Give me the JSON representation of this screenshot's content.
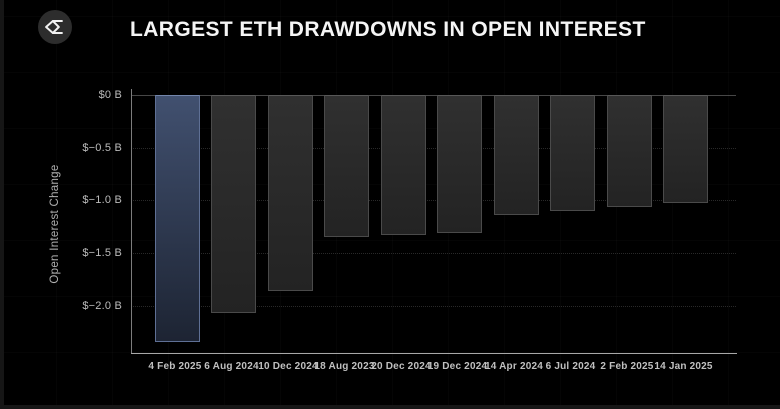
{
  "header": {
    "title": "LARGEST ETH DRAWDOWNS IN OPEN INTEREST",
    "logo_icon": "sigma-diamond-logo-icon"
  },
  "colors": {
    "background": "#000000",
    "highlight_bar_top": "#41506f",
    "highlight_bar_bottom": "#1d2433",
    "highlight_bar_border": "#5f7095",
    "bar_top": "#303030",
    "bar_bottom": "#232323",
    "bar_border": "#4a4a4a",
    "axis_line": "#a8a8a8",
    "tick_text": "#bcbcbc",
    "title_text": "#f5f5f5"
  },
  "chart_data": {
    "type": "bar",
    "title": "LARGEST ETH DRAWDOWNS IN OPEN INTEREST",
    "xlabel": "",
    "ylabel": "Open Interest Change",
    "unit": "USD billions",
    "categories": [
      "4 Feb 2025",
      "6 Aug 2024",
      "10 Dec 2024",
      "18 Aug 2023",
      "20 Dec 2024",
      "19 Dec 2024",
      "14 Apr 2024",
      "6 Jul 2024",
      "2 Feb 2025",
      "14 Jan 2025"
    ],
    "values": [
      -2.35,
      -2.07,
      -1.86,
      -1.35,
      -1.33,
      -1.31,
      -1.14,
      -1.1,
      -1.06,
      -1.03
    ],
    "highlight_index": 0,
    "ylim": [
      -2.45,
      0
    ],
    "grid": "horizontal-dotted",
    "legend": "none",
    "y_ticks": [
      {
        "value": 0,
        "label": "$0 B"
      },
      {
        "value": -0.5,
        "label": "$−0.5 B"
      },
      {
        "value": -1.0,
        "label": "$−1.0 B"
      },
      {
        "value": -1.5,
        "label": "$−1.5 B"
      },
      {
        "value": -2.0,
        "label": "$−2.0 B"
      }
    ]
  }
}
